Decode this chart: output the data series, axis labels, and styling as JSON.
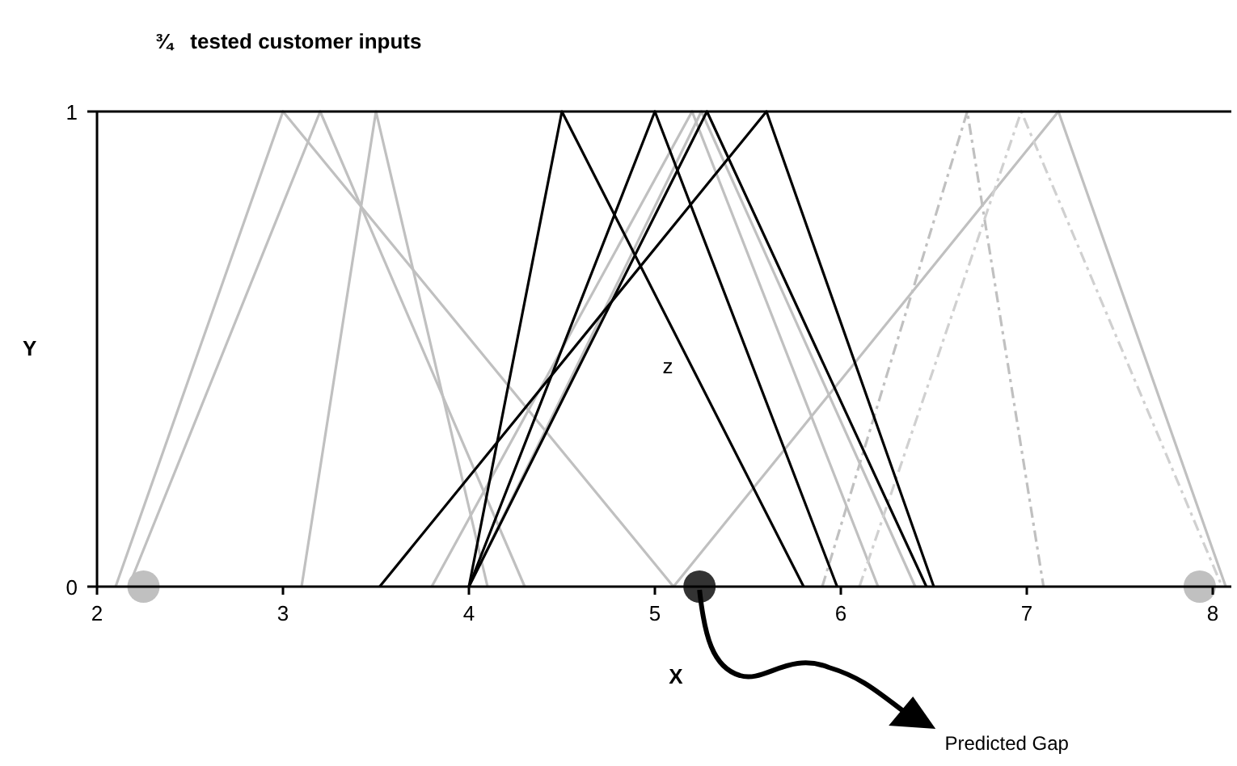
{
  "chart_data": {
    "type": "line",
    "title": "¾   tested customer inputs",
    "xlabel": "X",
    "ylabel": "Y",
    "xlim": [
      2,
      8.1
    ],
    "ylim": [
      0,
      1
    ],
    "xticks": [
      2,
      3,
      4,
      5,
      6,
      7,
      8
    ],
    "yticks": [
      0,
      1
    ],
    "series": [
      {
        "color": "#c0c0c0",
        "x": [
          2.1,
          3.0,
          5.1
        ],
        "values": [
          0,
          1,
          0
        ]
      },
      {
        "color": "#c0c0c0",
        "x": [
          2.17,
          3.2,
          4.3
        ],
        "values": [
          0,
          1,
          0
        ]
      },
      {
        "color": "#c0c0c0",
        "x": [
          3.1,
          3.5,
          4.1
        ],
        "values": [
          0,
          1,
          0
        ]
      },
      {
        "color": "#c0c0c0",
        "x": [
          3.8,
          5.2,
          6.2
        ],
        "values": [
          0,
          1,
          0
        ]
      },
      {
        "color": "#c0c0c0",
        "x": [
          4.0,
          5.25,
          6.4
        ],
        "values": [
          0,
          1,
          0
        ]
      },
      {
        "color": "#c0c0c0",
        "x": [
          5.1,
          7.17,
          8.07
        ],
        "values": [
          0,
          1,
          0
        ]
      },
      {
        "color": "#c0c0c0",
        "line_style": "dashdot",
        "x": [
          5.9,
          6.68,
          7.09
        ],
        "values": [
          0,
          1,
          0
        ]
      },
      {
        "color": "#d0d0d0",
        "line_style": "dashdot",
        "x": [
          6.1,
          6.97,
          8.05
        ],
        "values": [
          0,
          1,
          0
        ]
      },
      {
        "color": "#000000",
        "x": [
          4.0,
          4.5,
          5.8
        ],
        "values": [
          0,
          1,
          0
        ]
      },
      {
        "color": "#000000",
        "x": [
          4.0,
          5.0,
          5.98
        ],
        "values": [
          0,
          1,
          0
        ]
      },
      {
        "color": "#000000",
        "x": [
          4.0,
          5.28,
          6.46
        ],
        "values": [
          0,
          1,
          0
        ]
      },
      {
        "color": "#000000",
        "x": [
          3.52,
          5.6,
          6.5
        ],
        "values": [
          0,
          1,
          0
        ]
      },
      {
        "type": "scatter",
        "marker": "circle",
        "color": "#c0c0c0",
        "x": [
          2.25,
          7.93
        ],
        "values": [
          0,
          0
        ]
      },
      {
        "type": "scatter",
        "marker": "circle",
        "color": "#333333",
        "x": [
          5.24
        ],
        "values": [
          0
        ]
      }
    ],
    "annotations": [
      "z",
      "Predicted Gap"
    ]
  }
}
